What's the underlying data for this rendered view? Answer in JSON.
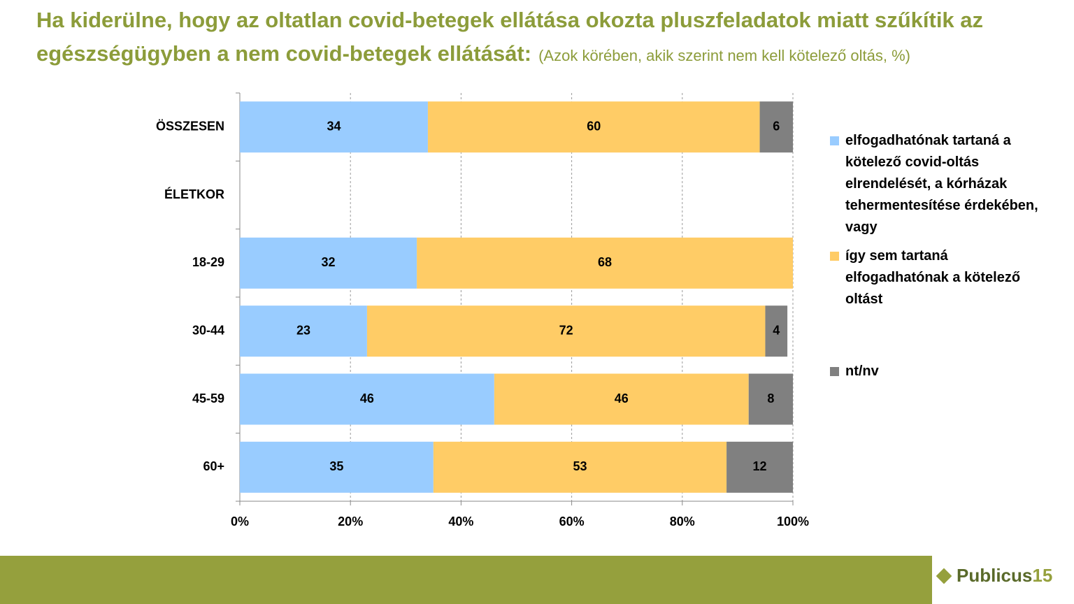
{
  "chart_data": {
    "type": "stacked-barh",
    "title": "Ha kiderülne, hogy az oltatlan covid-betegek ellátása okozta pluszfeladatok miatt szűkítik az egészségügyben a nem covid-betegek ellátását:",
    "subtitle": "(Azok körében, akik szerint nem kell kötelező oltás, %)",
    "categories": [
      "ÖSSZESEN",
      "ÉLETKOR",
      "18-29",
      "30-44",
      "45-59",
      "60+"
    ],
    "series": [
      {
        "name": "elfogadhatónak tartaná a kötelező covid-oltás elrendelését, a kórházak tehermentesítése érdekében, vagy",
        "color": "#99ccff",
        "values": [
          34,
          null,
          32,
          23,
          46,
          35
        ]
      },
      {
        "name": "így sem tartaná elfogadhatónak a kötelező oltást",
        "color": "#ffcc66",
        "values": [
          60,
          null,
          68,
          72,
          46,
          53
        ]
      },
      {
        "name": "nt/nv",
        "color": "#808080",
        "values": [
          6,
          null,
          null,
          4,
          8,
          12
        ]
      }
    ],
    "xlim": [
      0,
      100
    ],
    "xticks": [
      {
        "value": 0,
        "label": "0%"
      },
      {
        "value": 20,
        "label": "20%"
      },
      {
        "value": 40,
        "label": "40%"
      },
      {
        "value": 60,
        "label": "60%"
      },
      {
        "value": 80,
        "label": "80%"
      },
      {
        "value": 100,
        "label": "100%"
      }
    ],
    "grid": true
  },
  "footer": {
    "brand": "Publicus",
    "brand_number": "15"
  }
}
